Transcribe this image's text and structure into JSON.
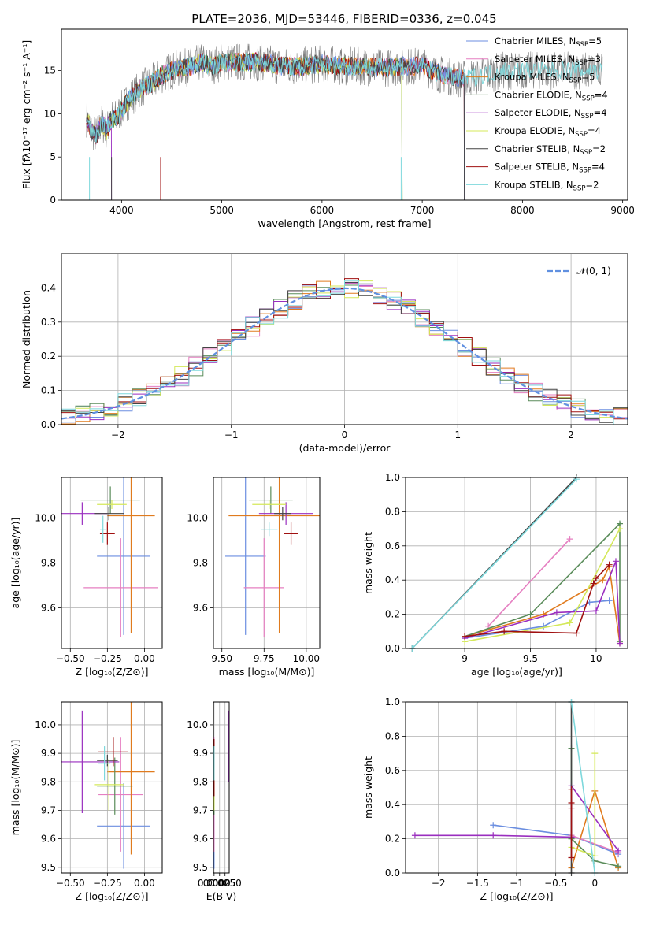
{
  "figure": {
    "title": "PLATE=2036, MJD=53446, FIBERID=0336, z=0.045"
  },
  "colors": [
    "#6b8ee0",
    "#e57fc1",
    "#e07b1e",
    "#5a8c5a",
    "#9a2ebf",
    "#d4e85a",
    "#444444",
    "#a01010",
    "#7ed8dc"
  ],
  "chart_data": [
    {
      "name": "spectrum",
      "type": "line",
      "xlabel": "wavelength [Angstrom, rest frame]",
      "ylabel": "Flux [fλ10⁻¹⁷ erg cm⁻² s⁻¹ A⁻¹]",
      "xlim": [
        3400,
        9050
      ],
      "ylim": [
        0,
        19.8
      ],
      "xticks": [
        4000,
        5000,
        6000,
        7000,
        8000,
        9000
      ],
      "yticks": [
        0,
        5,
        10,
        15
      ],
      "observed_color": "#808080",
      "anchor_wavelengths": [
        3650,
        3700,
        3750,
        3800,
        3850,
        3900,
        3950,
        4000,
        4100,
        4200,
        4300,
        4400,
        4500,
        4600,
        4700,
        4800,
        4900,
        5000,
        5200,
        5400,
        5600,
        5800,
        6000,
        6200,
        6400,
        6600,
        6800,
        7000,
        7200,
        7400,
        7600,
        7800,
        8000,
        8200,
        8400,
        8600,
        8800
      ],
      "anchor_flux": [
        9.5,
        8,
        7.5,
        9,
        8,
        9.5,
        9.5,
        10.5,
        12,
        13,
        13.5,
        14.5,
        15,
        15.3,
        15.5,
        16,
        15.5,
        16,
        16,
        16,
        15.5,
        15.5,
        15.8,
        15.5,
        15.5,
        15.3,
        15.5,
        15.5,
        14.5,
        14,
        14.5,
        15,
        15,
        15,
        15,
        15,
        15
      ],
      "legend": [
        {
          "label": "Chabrier MILES, N",
          "sub": "SSP",
          "suffix": "=5"
        },
        {
          "label": "Salpeter MILES, N",
          "sub": "SSP",
          "suffix": "=3"
        },
        {
          "label": "Kroupa MILES, N",
          "sub": "SSP",
          "suffix": "=5"
        },
        {
          "label": "Chabrier ELODIE, N",
          "sub": "SSP",
          "suffix": "=4"
        },
        {
          "label": "Salpeter ELODIE, N",
          "sub": "SSP",
          "suffix": "=4"
        },
        {
          "label": "Kroupa ELODIE, N",
          "sub": "SSP",
          "suffix": "=4"
        },
        {
          "label": "Chabrier STELIB, N",
          "sub": "SSP",
          "suffix": "=2"
        },
        {
          "label": "Salpeter STELIB, N",
          "sub": "SSP",
          "suffix": "=4"
        },
        {
          "label": "Kroupa STELIB, N",
          "sub": "SSP",
          "suffix": "=2"
        }
      ]
    },
    {
      "name": "residual-histogram",
      "type": "line",
      "xlabel": "(data-model)/error",
      "ylabel": "Normed distribution",
      "xlim": [
        -2.5,
        2.5
      ],
      "ylim": [
        0,
        0.5
      ],
      "xticks": [
        -2,
        -1,
        0,
        1,
        2
      ],
      "yticks": [
        0.0,
        0.1,
        0.2,
        0.3,
        0.4
      ],
      "curve_label": "𝒩(0, 1)",
      "curve_color": "#6090e0",
      "bin_width": 0.125
    },
    {
      "name": "age-vs-Z",
      "type": "scatter",
      "xlabel": "Z [log₁₀(Z/Z⊙)]",
      "ylabel": "age  [log₁₀(age/yr)]",
      "xlim": [
        -0.56,
        0.12
      ],
      "ylim": [
        9.42,
        10.18
      ],
      "xticks": [
        -0.5,
        -0.25,
        0.0
      ],
      "xticklabels": [
        "−0.50",
        "−0.25",
        "0.00"
      ],
      "yticks": [
        9.6,
        9.8,
        10.0
      ],
      "points": [
        {
          "x": -0.14,
          "y": 9.83,
          "xerr": 0.18,
          "yerr": 0.35
        },
        {
          "x": -0.16,
          "y": 9.69,
          "xerr": 0.25,
          "yerr": 0.22
        },
        {
          "x": -0.09,
          "y": 10.01,
          "xerr": 0.16,
          "yerr": 0.52
        },
        {
          "x": -0.23,
          "y": 10.08,
          "xerr": 0.2,
          "yerr": 0.06
        },
        {
          "x": -0.42,
          "y": 10.02,
          "xerr": 0.17,
          "yerr": 0.05
        },
        {
          "x": -0.22,
          "y": 10.06,
          "xerr": 0.1,
          "yerr": 0.02
        },
        {
          "x": -0.24,
          "y": 10.02,
          "xerr": 0.1,
          "yerr": 0.03
        },
        {
          "x": -0.25,
          "y": 9.93,
          "xerr": 0.05,
          "yerr": 0.05
        },
        {
          "x": -0.28,
          "y": 9.95,
          "xerr": 0.02,
          "yerr": 0.06
        }
      ]
    },
    {
      "name": "age-vs-mass",
      "type": "scatter",
      "xlabel": "mass [log₁₀(M/M⊙)]",
      "xlim": [
        9.45,
        10.08
      ],
      "ylim": [
        9.42,
        10.18
      ],
      "xticks": [
        9.5,
        9.75,
        10.0
      ],
      "xticklabels": [
        "9.50",
        "9.75",
        "10.00"
      ],
      "yticks": [
        9.6,
        9.8,
        10.0
      ],
      "points": [
        {
          "x": 9.64,
          "y": 9.83,
          "xerr": 0.12,
          "yerr": 0.35
        },
        {
          "x": 9.75,
          "y": 9.69,
          "xerr": 0.12,
          "yerr": 0.22
        },
        {
          "x": 9.84,
          "y": 10.01,
          "xerr": 0.3,
          "yerr": 0.52
        },
        {
          "x": 9.79,
          "y": 10.08,
          "xerr": 0.13,
          "yerr": 0.06
        },
        {
          "x": 9.88,
          "y": 10.02,
          "xerr": 0.16,
          "yerr": 0.05
        },
        {
          "x": 9.78,
          "y": 10.06,
          "xerr": 0.1,
          "yerr": 0.02
        },
        {
          "x": 9.86,
          "y": 10.02,
          "xerr": 0.05,
          "yerr": 0.03
        },
        {
          "x": 9.91,
          "y": 9.93,
          "xerr": 0.04,
          "yerr": 0.05
        },
        {
          "x": 9.78,
          "y": 9.95,
          "xerr": 0.05,
          "yerr": 0.03
        }
      ]
    },
    {
      "name": "mass-weight-vs-age",
      "type": "line",
      "xlabel": "age  [log₁₀(age/yr)]",
      "ylabel": "mass weight",
      "xlim": [
        8.55,
        10.24
      ],
      "ylim": [
        0,
        1.0
      ],
      "xticks": [
        9.0,
        9.5,
        10.0
      ],
      "yticks": [
        0.0,
        0.2,
        0.4,
        0.6,
        0.8,
        1.0
      ],
      "series": [
        {
          "x": [
            9.0,
            9.6,
            9.95,
            10.1
          ],
          "y": [
            0.06,
            0.13,
            0.27,
            0.28
          ]
        },
        {
          "x": [
            9.18,
            9.8
          ],
          "y": [
            0.13,
            0.64
          ]
        },
        {
          "x": [
            9.0,
            9.6,
            10.05,
            10.1,
            10.18
          ],
          "y": [
            0.07,
            0.2,
            0.4,
            0.48,
            0.03
          ]
        },
        {
          "x": [
            9.0,
            9.5,
            10.18,
            10.18
          ],
          "y": [
            0.07,
            0.2,
            0.73,
            0.04
          ]
        },
        {
          "x": [
            9.0,
            9.7,
            10.0,
            10.15,
            10.18
          ],
          "y": [
            0.06,
            0.21,
            0.22,
            0.51,
            0.03
          ]
        },
        {
          "x": [
            9.0,
            9.8,
            10.18
          ],
          "y": [
            0.04,
            0.15,
            0.7
          ]
        },
        {
          "x": [
            8.6,
            9.85
          ],
          "y": [
            0.0,
            1.0
          ]
        },
        {
          "x": [
            9.0,
            9.3,
            9.85,
            9.98,
            10.0,
            10.1
          ],
          "y": [
            0.07,
            0.1,
            0.09,
            0.38,
            0.41,
            0.49
          ]
        },
        {
          "x": [
            8.6,
            9.85
          ],
          "y": [
            0.0,
            0.99
          ]
        }
      ]
    },
    {
      "name": "mass-vs-Z",
      "type": "scatter",
      "xlabel": "Z [log₁₀(Z/Z⊙)]",
      "ylabel": "mass [log₁₀(M/M⊙)]",
      "xlim": [
        -0.56,
        0.12
      ],
      "ylim": [
        9.48,
        10.08
      ],
      "xticks": [
        -0.5,
        -0.25,
        0.0
      ],
      "xticklabels": [
        "−0.50",
        "−0.25",
        "0.00"
      ],
      "yticks": [
        9.5,
        9.6,
        9.7,
        9.8,
        9.9,
        10.0
      ],
      "points": [
        {
          "x": -0.14,
          "y": 9.645,
          "xerr": 0.18,
          "yerr": 0.15
        },
        {
          "x": -0.16,
          "y": 9.755,
          "xerr": 0.15,
          "yerr": 0.2
        },
        {
          "x": -0.09,
          "y": 9.835,
          "xerr": 0.16,
          "yerr": 0.29
        },
        {
          "x": -0.2,
          "y": 9.785,
          "xerr": 0.12,
          "yerr": 0.1
        },
        {
          "x": -0.42,
          "y": 9.87,
          "xerr": 0.25,
          "yerr": 0.18
        },
        {
          "x": -0.24,
          "y": 9.79,
          "xerr": 0.1,
          "yerr": 0.09
        },
        {
          "x": -0.25,
          "y": 9.875,
          "xerr": 0.07,
          "yerr": 0.02
        },
        {
          "x": -0.21,
          "y": 9.905,
          "xerr": 0.1,
          "yerr": 0.05
        },
        {
          "x": -0.27,
          "y": 9.865,
          "xerr": 0.04,
          "yerr": 0.06
        }
      ]
    },
    {
      "name": "mass-vs-EBV",
      "type": "scatter",
      "xlabel": "E(B-V)",
      "xlim": [
        -0.0003,
        0.0069
      ],
      "ylim": [
        9.48,
        10.08
      ],
      "xticks": [
        0.0,
        0.0025,
        0.005
      ],
      "xticklabels": [
        "0.0000",
        "0.0025",
        "0.0050"
      ],
      "yticks": [
        9.5,
        9.6,
        9.7,
        9.8,
        9.9,
        10.0
      ],
      "points": [
        {
          "x": 0.0,
          "y": 9.645,
          "yerr": 0.15
        },
        {
          "x": 0.0,
          "y": 9.755,
          "yerr": 0.2
        },
        {
          "x": 0.0,
          "y": 9.835,
          "yerr": 0.1
        },
        {
          "x": 0.0,
          "y": 9.785,
          "yerr": 0.1
        },
        {
          "x": 0.0066,
          "y": 9.925,
          "yerr": 0.125
        },
        {
          "x": 0.0,
          "y": 9.79,
          "yerr": 0.09
        },
        {
          "x": 0.0,
          "y": 9.875,
          "yerr": 0.02
        },
        {
          "x": 0.0,
          "y": 9.85,
          "yerr": 0.1
        },
        {
          "x": 0.0,
          "y": 9.865,
          "yerr": 0.06
        }
      ]
    },
    {
      "name": "mass-weight-vs-Z",
      "type": "line",
      "xlabel": "Z [log₁₀(Z/Z⊙)]",
      "ylabel": "mass weight",
      "xlim": [
        -2.42,
        0.42
      ],
      "ylim": [
        0,
        1.0
      ],
      "xticks": [
        -2.0,
        -1.5,
        -1.0,
        -0.5,
        0.0
      ],
      "yticks": [
        0.0,
        0.2,
        0.4,
        0.6,
        0.8,
        1.0
      ],
      "series": [
        {
          "x": [
            -1.3,
            -0.3,
            0.3
          ],
          "y": [
            0.28,
            0.22,
            0.11
          ]
        },
        {
          "x": [
            -0.3,
            0.3
          ],
          "y": [
            0.22,
            0.12
          ]
        },
        {
          "x": [
            -0.3,
            0.0,
            0.3
          ],
          "y": [
            0.03,
            0.48,
            0.03
          ]
        },
        {
          "x": [
            -0.3,
            -0.3,
            0.0,
            0.3
          ],
          "y": [
            0.73,
            0.2,
            0.07,
            0.04
          ]
        },
        {
          "x": [
            -2.3,
            -1.3,
            -0.3,
            -0.3,
            0.3
          ],
          "y": [
            0.22,
            0.22,
            0.21,
            0.51,
            0.13
          ]
        },
        {
          "x": [
            -0.3,
            0.0,
            0.0
          ],
          "y": [
            0.15,
            0.1,
            0.7
          ]
        },
        {
          "x": [
            -0.3,
            -0.3
          ],
          "y": [
            0.0,
            1.0
          ]
        },
        {
          "x": [
            -0.3,
            -0.3,
            -0.3,
            -0.3
          ],
          "y": [
            0.09,
            0.38,
            0.41,
            0.49
          ]
        },
        {
          "x": [
            -0.3,
            0.0
          ],
          "y": [
            1.0,
            0.0
          ]
        }
      ]
    }
  ]
}
